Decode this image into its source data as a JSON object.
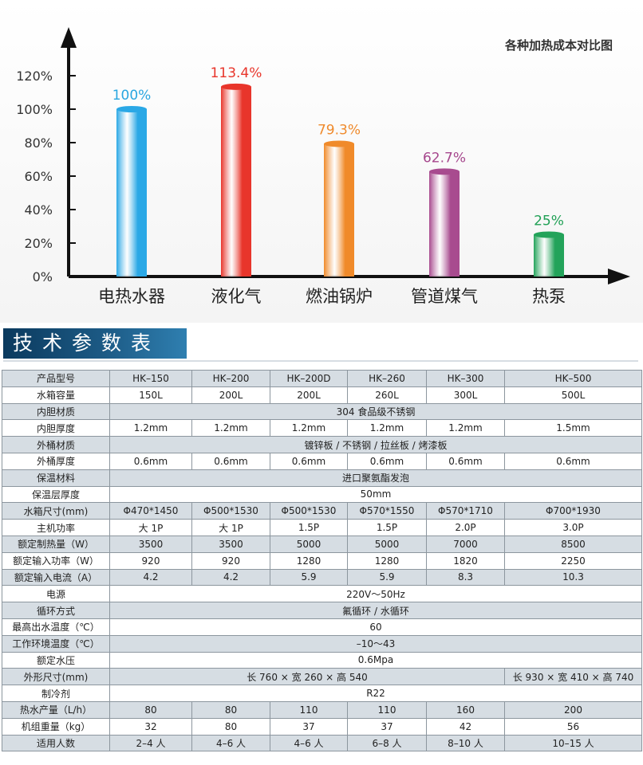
{
  "chart_data": {
    "type": "bar",
    "title": "各种加热成本对比图",
    "categories": [
      "电热水器",
      "液化气",
      "燃油锅炉",
      "管道煤气",
      "热泵"
    ],
    "values": [
      100,
      113.4,
      79.3,
      62.7,
      25
    ],
    "value_labels": [
      "100%",
      "113.4%",
      "79.3%",
      "62.7%",
      "25%"
    ],
    "y_ticks": [
      "0%",
      "20%",
      "40%",
      "60%",
      "80%",
      "100%",
      "120%"
    ],
    "ylim": [
      0,
      120
    ],
    "xlabel": "",
    "ylabel": "",
    "grid": false,
    "colors": [
      "#2aa8e6",
      "#e8352b",
      "#f08a2a",
      "#a84b8f",
      "#23a35a"
    ],
    "label_colors": [
      "#29a6e0",
      "#e8352b",
      "#ef8a2c",
      "#a6478d",
      "#20a055"
    ]
  },
  "section": {
    "title": "技术参数表"
  },
  "table": {
    "header": [
      "产品型号",
      "HK–150",
      "HK–200",
      "HK–200D",
      "HK–260",
      "HK–300",
      "HK–500"
    ],
    "rows": [
      [
        "水箱容量",
        "150L",
        "200L",
        "200L",
        "260L",
        "300L",
        "500L"
      ],
      [
        "内胆材质",
        "304 食品级不锈钢"
      ],
      [
        "内胆厚度",
        "1.2mm",
        "1.2mm",
        "1.2mm",
        "1.2mm",
        "1.2mm",
        "1.5mm"
      ],
      [
        "外桶材质",
        "镀锌板 / 不锈钢 / 拉丝板 / 烤漆板"
      ],
      [
        "外桶厚度",
        "0.6mm",
        "0.6mm",
        "0.6mm",
        "0.6mm",
        "0.6mm",
        "0.6mm"
      ],
      [
        "保温材料",
        "进口聚氨酯发泡"
      ],
      [
        "保温层厚度",
        "50mm"
      ],
      [
        "水箱尺寸(mm)",
        "Φ470*1450",
        "Φ500*1530",
        "Φ500*1530",
        "Φ570*1550",
        "Φ570*1710",
        "Φ700*1930"
      ],
      [
        "主机功率",
        "大 1P",
        "大 1P",
        "1.5P",
        "1.5P",
        "2.0P",
        "3.0P"
      ],
      [
        "额定制热量（W）",
        "3500",
        "3500",
        "5000",
        "5000",
        "7000",
        "8500"
      ],
      [
        "额定输入功率（W）",
        "920",
        "920",
        "1280",
        "1280",
        "1820",
        "2250"
      ],
      [
        "额定输入电流（A）",
        "4.2",
        "4.2",
        "5.9",
        "5.9",
        "8.3",
        "10.3"
      ],
      [
        "电源",
        "220V～50Hz"
      ],
      [
        "循环方式",
        "氟循环 / 水循环"
      ],
      [
        "最高出水温度（℃）",
        "60"
      ],
      [
        "工作环境温度（℃）",
        "–10～43"
      ],
      [
        "额定水压",
        "0.6Mpa"
      ],
      [
        "外形尺寸(mm)",
        "长 760 × 宽 260 × 高 540",
        "长 930 × 宽 410 × 高 740"
      ],
      [
        "制冷剂",
        "R22"
      ],
      [
        "热水产量（L/h）",
        "80",
        "80",
        "110",
        "110",
        "160",
        "200"
      ],
      [
        "机组重量（kg）",
        "32",
        "80",
        "37",
        "37",
        "42",
        "56"
      ],
      [
        "适用人数",
        "2–4 人",
        "4–6 人",
        "4–6 人",
        "6–8 人",
        "8–10 人",
        "10–15 人"
      ]
    ]
  }
}
